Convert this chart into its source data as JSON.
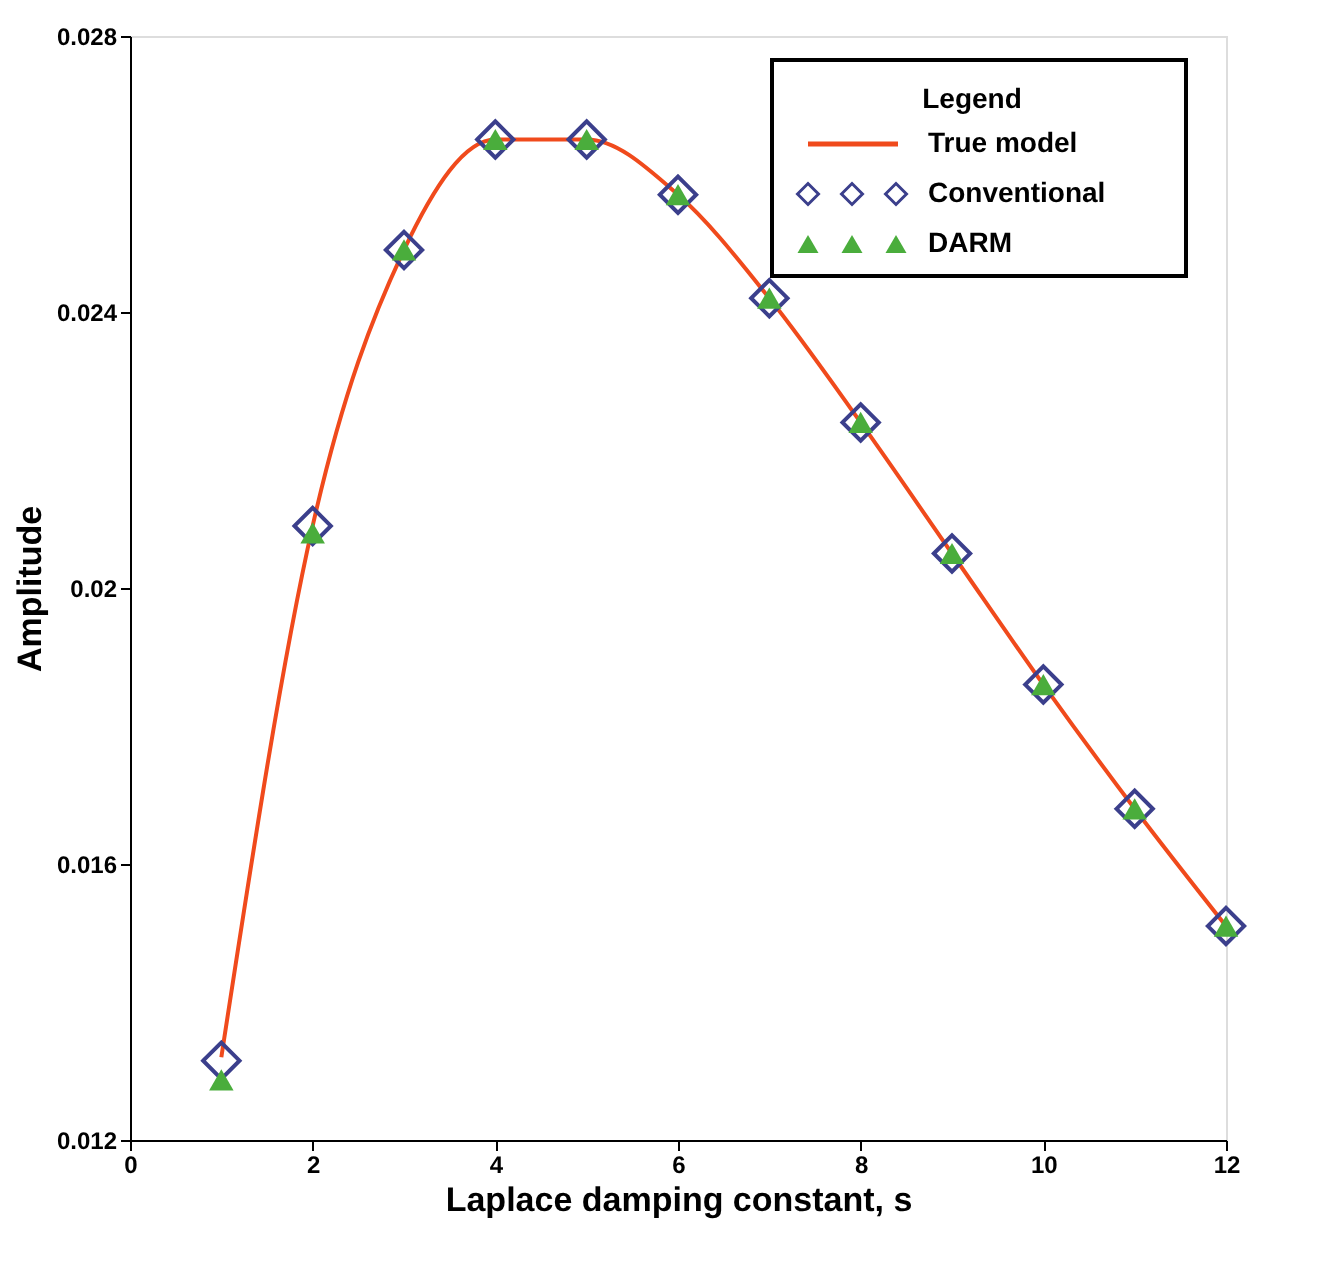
{
  "chart_data": {
    "type": "line",
    "xlabel": "Laplace damping constant, s",
    "ylabel": "Amplitude",
    "legend_title": "Legend",
    "legend": "top right",
    "x": [
      1,
      2,
      3,
      4,
      5,
      6,
      7,
      8,
      9,
      10,
      11,
      12
    ],
    "xlim": [
      0,
      12
    ],
    "xticks": [
      0,
      2,
      4,
      6,
      8,
      10,
      12
    ],
    "ylim": [
      0.012,
      0.028
    ],
    "yticks": [
      0.012,
      0.016,
      0.02,
      0.024,
      0.028
    ],
    "grid": false,
    "series": [
      {
        "name": "True model",
        "color": "#f04a1c",
        "marker": "none",
        "line_style": "solid",
        "values": [
          0.0132,
          0.0209,
          0.0249,
          0.0265,
          0.0265,
          0.0257,
          0.0242,
          0.0224,
          0.0205,
          0.0186,
          0.0168,
          0.0151
        ]
      },
      {
        "name": "Conventional",
        "type": "scatter",
        "color": "#3b3f8c",
        "marker": "diamond",
        "values": [
          0.01315,
          0.0209,
          0.0249,
          0.0265,
          0.0265,
          0.0257,
          0.0242,
          0.0224,
          0.0205,
          0.0186,
          0.0168,
          0.0151
        ]
      },
      {
        "name": "DARM",
        "type": "scatter",
        "color": "#4aad3c",
        "marker": "triangle",
        "values": [
          0.01287,
          0.0208,
          0.0249,
          0.0265,
          0.0265,
          0.0257,
          0.0242,
          0.0224,
          0.0205,
          0.0186,
          0.0168,
          0.0151
        ]
      }
    ]
  }
}
